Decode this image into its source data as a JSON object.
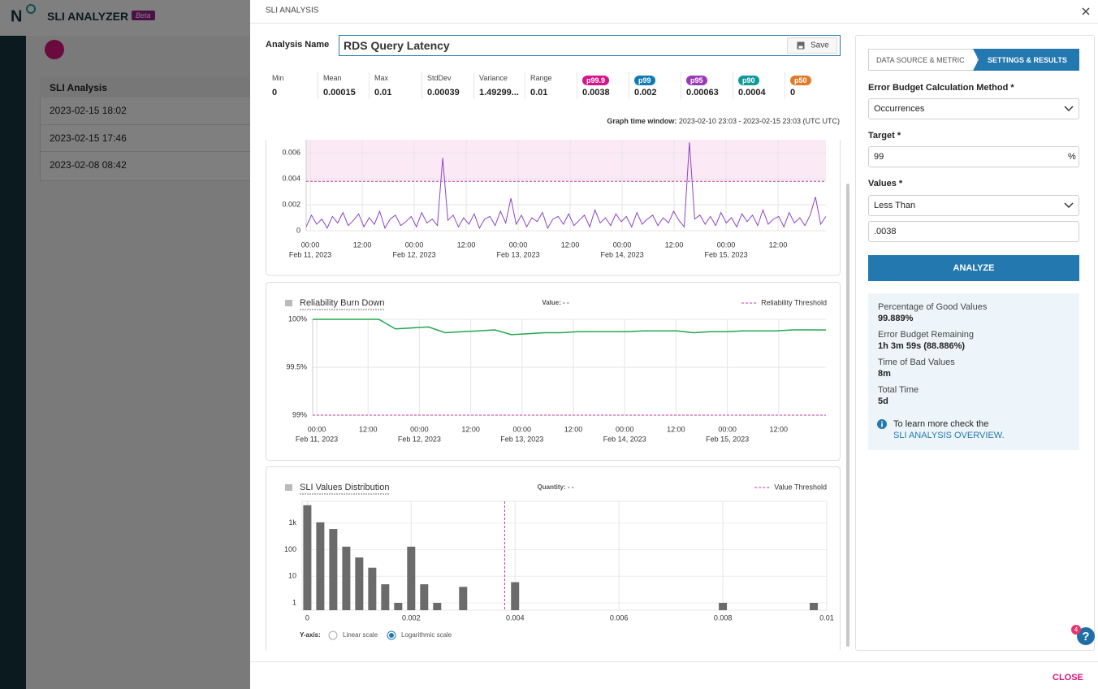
{
  "app": {
    "title": "SLI ANALYZER",
    "badge": "Beta"
  },
  "background_table": {
    "header": "SLI Analysis",
    "rows": [
      "2023-02-15 18:02",
      "2023-02-15 17:46",
      "2023-02-08 08:42"
    ]
  },
  "modal": {
    "title": "SLI ANALYSIS",
    "close": "CLOSE"
  },
  "analysis_name": {
    "label": "Analysis Name",
    "value": "RDS Query Latency",
    "save": "Save"
  },
  "stats": [
    {
      "label": "Min",
      "value": 0
    },
    {
      "label": "Mean",
      "value": 0.00015
    },
    {
      "label": "Max",
      "value": 0.01
    },
    {
      "label": "StdDev",
      "value": 0.00039
    },
    {
      "label": "Variance",
      "value": "1.49299..."
    },
    {
      "label": "Range",
      "value": 0.01
    },
    {
      "label": "p99.9",
      "value": 0.0038,
      "color": "#d4148a"
    },
    {
      "label": "p99",
      "value": 0.002,
      "color": "#0e7bb6"
    },
    {
      "label": "p95",
      "value": 0.00063,
      "color": "#9b3ab8"
    },
    {
      "label": "p90",
      "value": 0.0004,
      "color": "#0f9a9a"
    },
    {
      "label": "p50",
      "value": 0,
      "color": "#e07b25"
    }
  ],
  "time_window": {
    "label": "Graph time window:",
    "value": "2023-02-10 23:03 - 2023-02-15 23:03 (UTC UTC)"
  },
  "chart_data": [
    {
      "type": "line",
      "xlim": [
        "2023-02-10 23:03",
        "2023-02-15 23:03"
      ],
      "xticks": [
        {
          "value": "2023-02-11 00:00",
          "label": "00:00",
          "date": "Feb 11, 2023"
        },
        {
          "value": "2023-02-11 12:00",
          "label": "12:00"
        },
        {
          "value": "2023-02-12 00:00",
          "label": "00:00",
          "date": "Feb 12, 2023"
        },
        {
          "value": "2023-02-12 12:00",
          "label": "12:00"
        },
        {
          "value": "2023-02-13 00:00",
          "label": "00:00",
          "date": "Feb 13, 2023"
        },
        {
          "value": "2023-02-13 12:00",
          "label": "12:00"
        },
        {
          "value": "2023-02-14 00:00",
          "label": "00:00",
          "date": "Feb 14, 2023"
        },
        {
          "value": "2023-02-14 12:00",
          "label": "12:00"
        },
        {
          "value": "2023-02-15 00:00",
          "label": "00:00",
          "date": "Feb 15, 2023"
        },
        {
          "value": "2023-02-15 12:00",
          "label": "12:00"
        }
      ],
      "ylim": [
        0,
        0.007
      ],
      "yticks": [
        0,
        0.002,
        0.004,
        0.006
      ],
      "grid": true,
      "threshold": 0.0038,
      "threshold_color": "#c23aa0",
      "threshold_fill": "#fbe9f6",
      "series": [
        {
          "color": "#8e44c4",
          "values": [
            0.0003,
            0.0012,
            0.0005,
            0.0009,
            0.0002,
            0.0011,
            0.0006,
            0.0014,
            0.0004,
            0.0008,
            0.0013,
            0.0003,
            0.001,
            0.0005,
            0.0015,
            0.0002,
            0.0009,
            0.0012,
            0.0004,
            0.0007,
            0.0011,
            0.0003,
            0.0014,
            0.0006,
            0.0009,
            0.0004,
            0.0056,
            0.0008,
            0.0012,
            0.0003,
            0.001,
            0.0005,
            0.0013,
            0.0002,
            0.0009,
            0.0011,
            0.0004,
            0.0015,
            0.0006,
            0.0025,
            0.0005,
            0.0012,
            0.0003,
            0.001,
            0.0007,
            0.0014,
            0.0002,
            0.0009,
            0.0011,
            0.0005,
            0.0013,
            0.0004,
            0.0008,
            0.0012,
            0.0003,
            0.0016,
            0.0006,
            0.001,
            0.0004,
            0.0013,
            0.0007,
            0.0011,
            0.0003,
            0.0014,
            0.0005,
            0.0009,
            0.0012,
            0.0004,
            0.001,
            0.0006,
            0.0015,
            0.0008,
            0.0003,
            0.0068,
            0.0009,
            0.0012,
            0.0005,
            0.0011,
            0.0004,
            0.0014,
            0.0006,
            0.001,
            0.0003,
            0.0013,
            0.0007,
            0.0012,
            0.0004,
            0.0016,
            0.0005,
            0.0009,
            0.0011,
            0.0003,
            0.0014,
            0.0006,
            0.001,
            0.0004,
            0.0012,
            0.0026,
            0.0005,
            0.0011
          ]
        }
      ]
    },
    {
      "type": "line",
      "title": "Reliability Burn Down",
      "annotation": "Value: - -",
      "threshold_legend": "Reliability Threshold",
      "xlim": [
        "2023-02-10 23:03",
        "2023-02-15 23:03"
      ],
      "xticks": [
        {
          "value": "2023-02-11 00:00",
          "label": "00:00",
          "date": "Feb 11, 2023"
        },
        {
          "value": "2023-02-11 12:00",
          "label": "12:00"
        },
        {
          "value": "2023-02-12 00:00",
          "label": "00:00",
          "date": "Feb 12, 2023"
        },
        {
          "value": "2023-02-12 12:00",
          "label": "12:00"
        },
        {
          "value": "2023-02-13 00:00",
          "label": "00:00",
          "date": "Feb 13, 2023"
        },
        {
          "value": "2023-02-13 12:00",
          "label": "12:00"
        },
        {
          "value": "2023-02-14 00:00",
          "label": "00:00",
          "date": "Feb 14, 2023"
        },
        {
          "value": "2023-02-14 12:00",
          "label": "12:00"
        },
        {
          "value": "2023-02-15 00:00",
          "label": "00:00",
          "date": "Feb 15, 2023"
        },
        {
          "value": "2023-02-15 12:00",
          "label": "12:00"
        }
      ],
      "ylim": [
        99,
        100
      ],
      "yticks": [
        {
          "value": 100,
          "label": "100%"
        },
        {
          "value": 99.5,
          "label": "99.5%"
        },
        {
          "value": 99,
          "label": "99%"
        }
      ],
      "grid": true,
      "threshold": 99,
      "threshold_color": "#c23aa0",
      "series": [
        {
          "color": "#22a84f",
          "values": [
            100,
            100,
            100,
            100,
            100,
            99.9,
            99.91,
            99.92,
            99.86,
            99.87,
            99.88,
            99.89,
            99.84,
            99.85,
            99.86,
            99.86,
            99.87,
            99.87,
            99.87,
            99.87,
            99.88,
            99.88,
            99.88,
            99.86,
            99.87,
            99.87,
            99.88,
            99.88,
            99.88,
            99.89,
            99.89,
            99.889
          ]
        }
      ]
    },
    {
      "type": "histogram",
      "title": "SLI Values Distribution",
      "annotation": "Quantity: - -",
      "threshold_legend": "Value Threshold",
      "xlim": [
        -0.0001,
        0.01
      ],
      "xticks": [
        0,
        0.002,
        0.004,
        0.006,
        0.008,
        0.01
      ],
      "ylim": [
        0.53,
        6600
      ],
      "yticks": [
        1,
        10,
        100,
        {
          "value": 1000,
          "label": "1k"
        }
      ],
      "log_scale": true,
      "grid": true,
      "threshold": 0.0038,
      "threshold_color": "#c23aa0",
      "color": "#6b6b6b",
      "bins": [
        -0.000125,
        0.000125,
        0.000375,
        0.000625,
        0.000875,
        0.001125,
        0.001375,
        0.001625,
        0.001875,
        0.002125,
        0.002375,
        0.002625,
        0.002875,
        0.003125,
        0.003375,
        0.003625,
        0.003875,
        0.004125,
        0.004375,
        0.004625,
        0.004875,
        0.005125,
        0.005375,
        0.005625,
        0.005875,
        0.006125,
        0.006375,
        0.006625,
        0.006875,
        0.007125,
        0.007375,
        0.007625,
        0.007875,
        0.008125,
        0.008375,
        0.008625,
        0.008875,
        0.009125,
        0.009375,
        0.009625,
        0.009875,
        0.010125
      ],
      "values": [
        4700,
        1070,
        600,
        130,
        51,
        21,
        5,
        1,
        130,
        5,
        1,
        0,
        4,
        0,
        0,
        0,
        6,
        0,
        0,
        0,
        0,
        0,
        0,
        0,
        0,
        0,
        0,
        0,
        0,
        0,
        0,
        0,
        1,
        0,
        0,
        0,
        0,
        0,
        0,
        1,
        0
      ],
      "y_axis_label": "Y-axis:",
      "scale_options": [
        "Linear scale",
        "Logarithmic scale"
      ]
    }
  ],
  "settings": {
    "tabs": [
      "DATA SOURCE & METRIC",
      "SETTINGS & RESULTS"
    ],
    "method_label": "Error Budget Calculation Method *",
    "method": "Occurrences",
    "target_label": "Target *",
    "target": 99,
    "target_unit": "%",
    "values_label": "Values *",
    "operator": "Less Than",
    "threshold": ".0038",
    "analyze": "ANALYZE"
  },
  "results": [
    {
      "label": "Percentage of Good Values",
      "value": "99.889%"
    },
    {
      "label": "Error Budget Remaining",
      "value": "1h 3m 59s (88.886%)"
    },
    {
      "label": "Time of Bad Values",
      "value": "8m"
    },
    {
      "label": "Total Time",
      "value": "5d"
    }
  ],
  "info": {
    "text": "To learn more check the",
    "link": "SLI ANALYSIS OVERVIEW."
  },
  "help_badge": 4
}
